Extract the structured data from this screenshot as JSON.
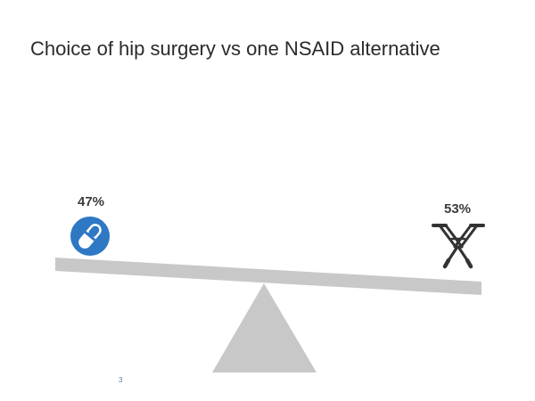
{
  "slide": {
    "title": "Choice of hip surgery vs one NSAID alternative",
    "page_number": "3"
  },
  "choices": {
    "left": {
      "percent": "47%",
      "value": 47,
      "icon": "pill-capsule-icon"
    },
    "right": {
      "percent": "53%",
      "value": 53,
      "icon": "crossed-crutches-icon"
    }
  },
  "colors": {
    "pill_circle": "#2e78c4",
    "seesaw": "#c8c8c8",
    "crutches": "#333333"
  }
}
